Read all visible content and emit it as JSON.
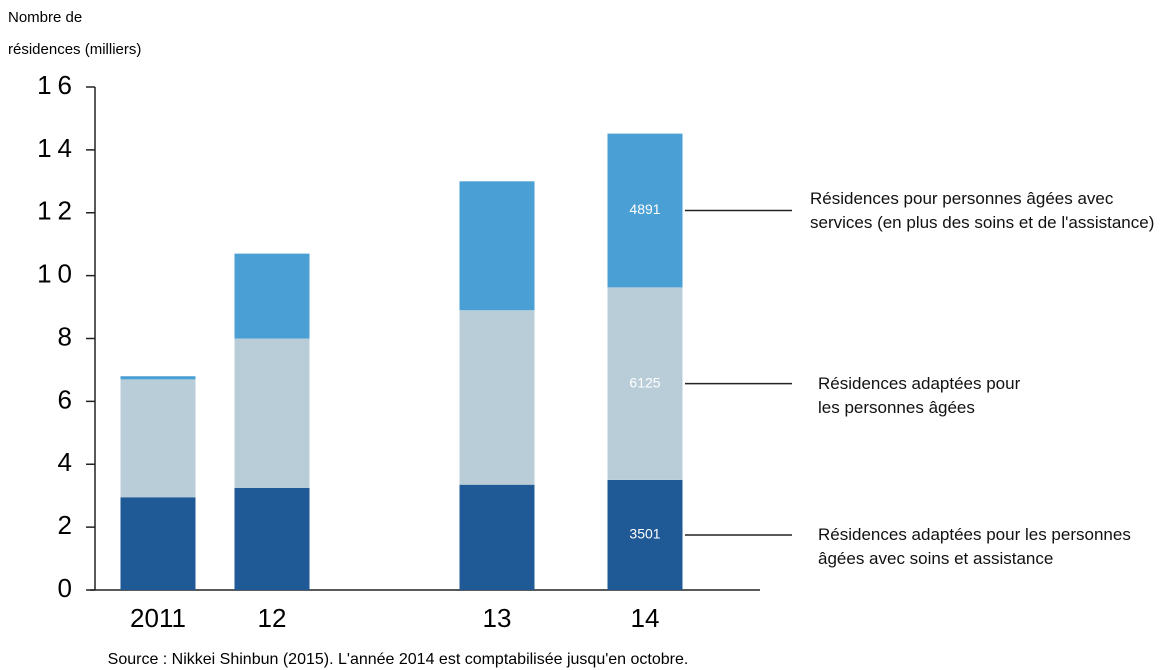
{
  "chart_data": {
    "type": "stacked_bar",
    "y_label": [
      "Nombre de",
      "résidences (milliers)"
    ],
    "categories": [
      "2011",
      "12",
      "13",
      "14"
    ],
    "series": [
      {
        "name": "Résidences adaptées pour les personnes âgées avec soins et assistance",
        "color": "#1f5a96",
        "values": [
          2.95,
          3.25,
          3.35,
          3.501
        ],
        "value_labels": [
          null,
          null,
          null,
          "3501"
        ]
      },
      {
        "name": "Résidences adaptées pour les personnes âgées",
        "color": "#b9cdd9",
        "values": [
          3.75,
          4.75,
          5.55,
          6.125
        ],
        "value_labels": [
          null,
          null,
          null,
          "6125"
        ]
      },
      {
        "name": "Résidences pour personnes âgées avec services (en plus des soins et de l'assistance)",
        "color": "#4a9fd4",
        "values": [
          0.1,
          2.7,
          4.1,
          4.891
        ],
        "value_labels": [
          null,
          null,
          null,
          "4891"
        ]
      }
    ],
    "ylim": [
      0,
      16
    ],
    "yticks": [
      0,
      2,
      4,
      6,
      8,
      10,
      12,
      14,
      16
    ],
    "source": "Source : Nikkei Shinbun (2015). L'année 2014 est comptabilisée jusqu'en octobre."
  }
}
